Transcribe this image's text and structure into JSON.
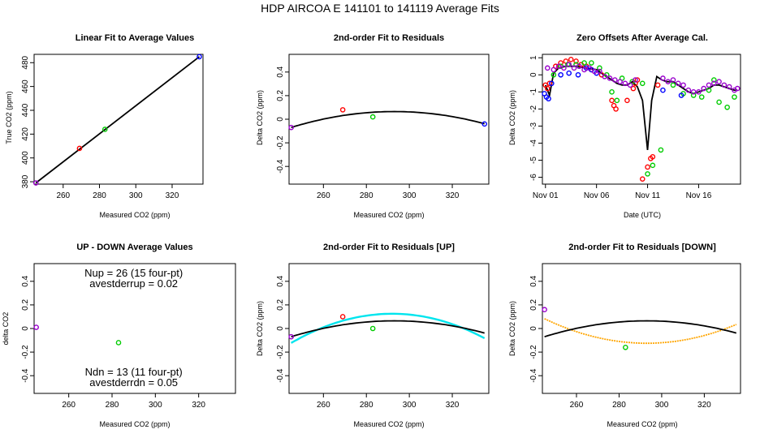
{
  "suptitle": "HDP   AIRCOA E   141101 to 141119   Average Fits",
  "colors": {
    "red": "#ff0000",
    "green": "#00cc00",
    "blue": "#0000ff",
    "purple": "#9900cc",
    "black": "#000000",
    "cyan": "#00e5ee",
    "orange": "#ffa500"
  },
  "chart_data": [
    {
      "id": "p1",
      "type": "scatter",
      "title": "Linear Fit to Average Values",
      "xlabel": "Measured CO2 (ppm)",
      "ylabel": "True CO2 (ppm)",
      "xlim": [
        244,
        337
      ],
      "ylim": [
        378,
        487
      ],
      "xticks": [
        260,
        280,
        300,
        320
      ],
      "yticks": [
        380,
        400,
        420,
        440,
        460,
        480
      ],
      "points": [
        {
          "x": 245,
          "y": 379,
          "color": "purple"
        },
        {
          "x": 269,
          "y": 408,
          "color": "red"
        },
        {
          "x": 283,
          "y": 424,
          "color": "green"
        },
        {
          "x": 335,
          "y": 485,
          "color": "blue"
        }
      ],
      "lines": [
        {
          "color": "black",
          "x": [
            245,
            335
          ],
          "y": [
            379,
            485
          ]
        }
      ]
    },
    {
      "id": "p2",
      "type": "scatter",
      "title": "2nd-order Fit to Residuals",
      "xlabel": "Measured CO2 (ppm)",
      "ylabel": "Delta CO2 (ppm)",
      "xlim": [
        244,
        337
      ],
      "ylim": [
        -0.55,
        0.55
      ],
      "xticks": [
        260,
        280,
        300,
        320
      ],
      "yticks": [
        -0.4,
        -0.2,
        0.0,
        0.2,
        0.4
      ],
      "points": [
        {
          "x": 245,
          "y": -0.07,
          "color": "purple"
        },
        {
          "x": 269,
          "y": 0.08,
          "color": "red"
        },
        {
          "x": 283,
          "y": 0.02,
          "color": "green"
        },
        {
          "x": 335,
          "y": -0.04,
          "color": "blue"
        }
      ],
      "curves": [
        {
          "color": "black",
          "from": 245,
          "to": 335,
          "a": -5.85e-05,
          "xv": 293,
          "yv": 0.065
        }
      ]
    },
    {
      "id": "p3",
      "type": "scatter",
      "title": "Zero Offsets After Average Cal.",
      "xlabel": "Date (UTC)",
      "ylabel": "Delta CO2 (ppm)",
      "xlim": [
        0.7,
        20.1
      ],
      "ylim": [
        -6.4,
        1.2
      ],
      "xticks": [
        1,
        6,
        11,
        16
      ],
      "xticklabels": [
        "Nov 01",
        "Nov 06",
        "Nov 11",
        "Nov 16"
      ],
      "yticks": [
        1,
        0,
        -1,
        -2,
        -3,
        -4,
        -5,
        -6
      ],
      "series": [
        {
          "name": "red",
          "color": "red",
          "x": [
            1.0,
            1.2,
            1.4,
            2.0,
            2.5,
            3.0,
            3.5,
            4.0,
            4.5,
            5.0,
            5.5,
            6.5,
            7.5,
            7.7,
            7.9,
            9.0,
            9.6,
            9.8,
            10.0,
            10.5,
            11.0,
            11.3,
            11.5,
            12.0
          ],
          "y": [
            -0.6,
            -0.8,
            -0.5,
            0.5,
            0.7,
            0.8,
            0.9,
            0.8,
            0.6,
            0.5,
            0.3,
            0.0,
            -1.5,
            -1.8,
            -2.0,
            -1.5,
            -0.8,
            -0.5,
            -0.3,
            -6.1,
            -5.4,
            -4.9,
            -4.8,
            -0.6
          ]
        },
        {
          "name": "green",
          "color": "green",
          "x": [
            1.8,
            2.5,
            3.2,
            4.0,
            4.8,
            5.5,
            6.3,
            7.0,
            7.5,
            8.0,
            8.5,
            9.5,
            10.5,
            11.0,
            11.5,
            12.3,
            13.5,
            14.5,
            15.5,
            16.3,
            17.0,
            17.5,
            18.0,
            18.8,
            19.5
          ],
          "y": [
            0.0,
            0.5,
            0.6,
            0.6,
            0.7,
            0.7,
            0.4,
            0.0,
            -1.0,
            -1.5,
            -0.2,
            -0.4,
            -0.5,
            -5.8,
            -5.3,
            -4.4,
            -0.6,
            -1.1,
            -1.2,
            -1.3,
            -0.9,
            -0.3,
            -1.6,
            -1.9,
            -1.3
          ]
        },
        {
          "name": "blue",
          "color": "blue",
          "x": [
            0.9,
            1.1,
            1.3,
            1.6,
            2.5,
            3.3,
            4.2,
            5.0,
            5.5,
            6.0,
            12.5,
            14.3
          ],
          "y": [
            -1.1,
            -1.3,
            -1.4,
            -0.5,
            0.0,
            0.1,
            0.0,
            0.4,
            0.3,
            0.1,
            -0.9,
            -1.2
          ]
        },
        {
          "name": "purple",
          "color": "purple",
          "x": [
            1.2,
            1.8,
            2.3,
            2.8,
            3.3,
            3.8,
            4.3,
            4.8,
            5.3,
            5.8,
            6.3,
            6.8,
            7.3,
            7.8,
            8.3,
            8.8,
            9.3,
            9.8,
            12.5,
            13.0,
            13.5,
            14.0,
            14.5,
            15.0,
            15.5,
            16.0,
            16.5,
            17.0,
            17.5,
            18.0,
            18.5,
            19.0,
            19.5,
            19.8
          ],
          "y": [
            0.4,
            0.3,
            0.5,
            0.4,
            0.6,
            0.4,
            0.5,
            0.3,
            0.4,
            0.2,
            0.2,
            -0.1,
            -0.2,
            -0.3,
            -0.4,
            -0.5,
            -0.6,
            -0.3,
            -0.2,
            -0.4,
            -0.3,
            -0.5,
            -0.6,
            -0.9,
            -1.0,
            -1.0,
            -0.8,
            -0.6,
            -0.5,
            -0.4,
            -0.6,
            -0.7,
            -0.9,
            -0.8
          ]
        }
      ],
      "lines": [
        {
          "color": "black",
          "x": [
            1.0,
            1.4,
            1.8,
            2.3,
            3.0,
            4.0,
            5.0,
            6.0,
            6.5,
            7.0,
            7.5,
            8.0,
            8.5,
            9.0,
            9.5,
            10.0,
            10.5,
            11.0,
            11.4,
            11.9,
            12.4,
            12.9,
            13.5,
            14.0,
            14.5,
            15.0,
            15.5,
            16.0,
            16.5,
            17.0,
            17.5,
            18.0,
            18.5,
            19.0,
            19.5,
            19.8
          ],
          "y": [
            -0.6,
            -1.2,
            0.1,
            0.4,
            0.5,
            0.5,
            0.4,
            0.3,
            0.1,
            -0.1,
            -0.3,
            -0.5,
            -0.6,
            -0.6,
            -0.4,
            -0.7,
            -1.5,
            -4.4,
            -1.5,
            -0.1,
            -0.3,
            -0.4,
            -0.4,
            -0.6,
            -0.8,
            -1.0,
            -1.1,
            -1.0,
            -0.9,
            -0.8,
            -0.6,
            -0.6,
            -0.7,
            -0.8,
            -0.9,
            -0.9
          ]
        }
      ]
    },
    {
      "id": "p4",
      "type": "scatter",
      "title": "UP - DOWN Average Values",
      "xlabel": "Measured CO2 (ppm)",
      "ylabel": "delta CO2",
      "xlim": [
        244,
        337
      ],
      "ylim": [
        -0.55,
        0.55
      ],
      "xticks": [
        260,
        280,
        300,
        320
      ],
      "yticks": [
        -0.4,
        -0.2,
        0.0,
        0.2,
        0.4
      ],
      "points": [
        {
          "x": 245,
          "y": 0.01,
          "color": "purple"
        },
        {
          "x": 283,
          "y": -0.12,
          "color": "green"
        }
      ],
      "annotations": [
        {
          "lines": [
            "Nup = 26 (15 four-pt)",
            "avestderrup =  0.02"
          ],
          "x": 290,
          "y": 0.44
        },
        {
          "lines": [
            "Ndn = 13 (11 four-pt)",
            "avestderrdn =  0.05"
          ],
          "x": 290,
          "y": -0.4
        }
      ]
    },
    {
      "id": "p5",
      "type": "scatter",
      "title": "2nd-order Fit to Residuals [UP]",
      "xlabel": "Measured CO2 (ppm)",
      "ylabel": "Delta CO2 (ppm)",
      "xlim": [
        244,
        337
      ],
      "ylim": [
        -0.55,
        0.55
      ],
      "xticks": [
        260,
        280,
        300,
        320
      ],
      "yticks": [
        -0.4,
        -0.2,
        0.0,
        0.2,
        0.4
      ],
      "points": [
        {
          "x": 245,
          "y": -0.07,
          "color": "purple"
        },
        {
          "x": 269,
          "y": 0.1,
          "color": "red"
        },
        {
          "x": 283,
          "y": 0.0,
          "color": "green"
        }
      ],
      "curves": [
        {
          "color": "cyan",
          "from": 245,
          "to": 335,
          "a": -0.000112,
          "xv": 292,
          "yv": 0.125
        },
        {
          "color": "black",
          "from": 245,
          "to": 335,
          "a": -5.85e-05,
          "xv": 293,
          "yv": 0.065
        }
      ]
    },
    {
      "id": "p6",
      "type": "scatter",
      "title": "2nd-order Fit to Residuals [DOWN]",
      "xlabel": "Measured CO2 (ppm)",
      "ylabel": "Delta CO2 (ppm)",
      "xlim": [
        244,
        337
      ],
      "ylim": [
        -0.55,
        0.55
      ],
      "xticks": [
        260,
        280,
        300,
        320
      ],
      "yticks": [
        -0.4,
        -0.2,
        0.0,
        0.2,
        0.4
      ],
      "points": [
        {
          "x": 245,
          "y": 0.16,
          "color": "purple"
        },
        {
          "x": 283,
          "y": -0.16,
          "color": "green"
        }
      ],
      "curves": [
        {
          "color": "orange",
          "from": 245,
          "to": 335,
          "a": 9.02e-05,
          "xv": 293,
          "yv": -0.125,
          "dotted": true
        },
        {
          "color": "black",
          "from": 245,
          "to": 335,
          "a": -5.85e-05,
          "xv": 293,
          "yv": 0.065
        }
      ]
    }
  ]
}
